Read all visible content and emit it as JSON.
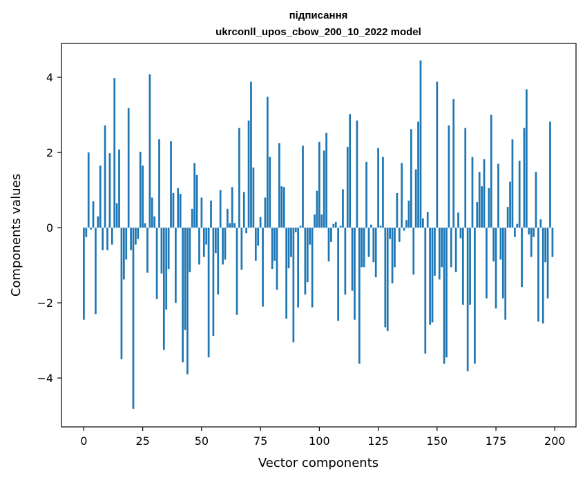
{
  "chart_data": {
    "type": "bar",
    "title_line1": "підписання",
    "title_line2": "ukrconll_upos_cbow_200_10_2022 model",
    "xlabel": "Vector components",
    "ylabel": "Components values",
    "xlim": [
      -9.5,
      209
    ],
    "ylim": [
      -5.3,
      4.9
    ],
    "xticks": [
      0,
      25,
      50,
      75,
      100,
      125,
      150,
      175,
      200
    ],
    "yticks": [
      -4,
      -2,
      0,
      2,
      4
    ],
    "xtick_labels": [
      "0",
      "25",
      "50",
      "75",
      "100",
      "125",
      "150",
      "175",
      "200"
    ],
    "ytick_labels": [
      "−4",
      "−2",
      "0",
      "2",
      "4"
    ],
    "bar_color": "#1f77b4",
    "grid": false,
    "legend": "none",
    "x": [
      0,
      1,
      2,
      3,
      4,
      5,
      6,
      7,
      8,
      9,
      10,
      11,
      12,
      13,
      14,
      15,
      16,
      17,
      18,
      19,
      20,
      21,
      22,
      23,
      24,
      25,
      26,
      27,
      28,
      29,
      30,
      31,
      32,
      33,
      34,
      35,
      36,
      37,
      38,
      39,
      40,
      41,
      42,
      43,
      44,
      45,
      46,
      47,
      48,
      49,
      50,
      51,
      52,
      53,
      54,
      55,
      56,
      57,
      58,
      59,
      60,
      61,
      62,
      63,
      64,
      65,
      66,
      67,
      68,
      69,
      70,
      71,
      72,
      73,
      74,
      75,
      76,
      77,
      78,
      79,
      80,
      81,
      82,
      83,
      84,
      85,
      86,
      87,
      88,
      89,
      90,
      91,
      92,
      93,
      94,
      95,
      96,
      97,
      98,
      99,
      100,
      101,
      102,
      103,
      104,
      105,
      106,
      107,
      108,
      109,
      110,
      111,
      112,
      113,
      114,
      115,
      116,
      117,
      118,
      119,
      120,
      121,
      122,
      123,
      124,
      125,
      126,
      127,
      128,
      129,
      130,
      131,
      132,
      133,
      134,
      135,
      136,
      137,
      138,
      139,
      140,
      141,
      142,
      143,
      144,
      145,
      146,
      147,
      148,
      149,
      150,
      151,
      152,
      153,
      154,
      155,
      156,
      157,
      158,
      159,
      160,
      161,
      162,
      163,
      164,
      165,
      166,
      167,
      168,
      169,
      170,
      171,
      172,
      173,
      174,
      175,
      176,
      177,
      178,
      179,
      180,
      181,
      182,
      183,
      184,
      185,
      186,
      187,
      188,
      189,
      190,
      191,
      192,
      193,
      194,
      195,
      196,
      197,
      198,
      199
    ],
    "values": [
      -2.45,
      -0.25,
      2.0,
      -0.05,
      0.7,
      -2.3,
      0.3,
      1.65,
      -0.6,
      2.72,
      -0.6,
      1.98,
      -0.45,
      3.98,
      0.65,
      2.08,
      -3.5,
      -1.38,
      -0.85,
      3.18,
      -0.6,
      -4.82,
      -0.45,
      -0.3,
      2.02,
      1.65,
      0.12,
      -1.2,
      4.08,
      0.8,
      0.3,
      -1.9,
      2.35,
      -1.22,
      -3.25,
      -2.18,
      -1.1,
      2.3,
      0.92,
      -2.0,
      1.05,
      0.9,
      -3.58,
      -2.72,
      -3.9,
      -1.18,
      0.5,
      1.72,
      1.4,
      -0.98,
      0.8,
      -0.78,
      -0.45,
      -3.45,
      0.72,
      -2.88,
      -0.68,
      -1.78,
      1.0,
      -0.98,
      -0.85,
      0.5,
      0.12,
      1.08,
      0.12,
      -2.32,
      2.65,
      -1.12,
      0.95,
      -0.15,
      2.85,
      3.88,
      1.6,
      -0.88,
      -0.48,
      0.28,
      -2.1,
      0.8,
      3.48,
      1.88,
      -1.1,
      -0.88,
      -1.65,
      2.25,
      1.1,
      1.08,
      -2.42,
      -1.08,
      -0.78,
      -3.05,
      -0.12,
      -2.12,
      0.05,
      2.18,
      -1.78,
      -1.45,
      -0.45,
      -2.12,
      0.35,
      0.98,
      2.28,
      0.35,
      2.05,
      2.52,
      -0.9,
      -0.38,
      0.1,
      0.15,
      -2.48,
      0.05,
      1.02,
      -1.78,
      2.15,
      3.02,
      -1.68,
      -2.45,
      2.85,
      -3.62,
      -1.05,
      -1.05,
      1.75,
      -0.78,
      0.08,
      -0.92,
      -1.32,
      2.12,
      0.05,
      1.88,
      -2.65,
      -2.75,
      -0.3,
      -1.48,
      -1.05,
      0.92,
      -0.38,
      1.72,
      -0.08,
      0.2,
      0.72,
      2.62,
      -1.25,
      1.55,
      2.82,
      4.45,
      0.25,
      -3.35,
      0.42,
      -2.58,
      -2.52,
      -1.28,
      3.88,
      -1.38,
      -1.05,
      -3.62,
      -3.45,
      2.72,
      -1.05,
      3.42,
      -1.18,
      0.4,
      -0.28,
      -2.05,
      2.65,
      -3.82,
      -2.05,
      1.88,
      -3.62,
      0.68,
      1.48,
      1.1,
      1.82,
      -1.88,
      1.05,
      3.0,
      -0.9,
      -2.15,
      1.7,
      -0.85,
      -1.88,
      -2.45,
      0.55,
      1.22,
      2.35,
      -0.25,
      0.1,
      1.78,
      -1.58,
      2.65,
      3.68,
      -0.18,
      -0.78,
      -0.25,
      1.48,
      -2.5,
      0.22,
      -2.55,
      -0.92,
      -1.88,
      2.82,
      -0.78
    ]
  }
}
